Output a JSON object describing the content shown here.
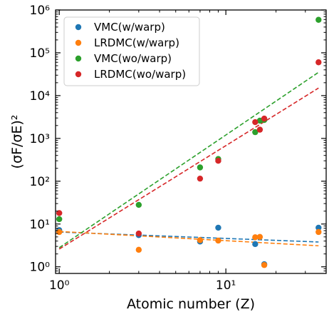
{
  "chart_data": {
    "type": "scatter",
    "xscale": "log",
    "yscale": "log",
    "xlim": [
      0.95,
      40
    ],
    "ylim": [
      0.7,
      1000000
    ],
    "xlabel": "Atomic number (Z)",
    "ylabel": "(σF/σE)²",
    "x_tick_labels": [
      "10⁰",
      "10¹"
    ],
    "y_tick_labels": [
      "10⁰",
      "10¹",
      "10²",
      "10³",
      "10⁴",
      "10⁵",
      "10⁶"
    ],
    "grid": false,
    "legend_position": "upper-left",
    "series": [
      {
        "name": "VMC(w/warp)",
        "color": "#1f77b4",
        "x": [
          1,
          3,
          7,
          9,
          15,
          17,
          36
        ],
        "y": [
          7.2,
          5.5,
          3.9,
          8.2,
          3.4,
          1.15,
          8.2
        ],
        "fit": {
          "x": [
            1,
            36
          ],
          "y": [
            6.5,
            3.8
          ]
        }
      },
      {
        "name": "LRDMC(w/warp)",
        "color": "#ff7f0e",
        "x": [
          1,
          3,
          7,
          9,
          15,
          16,
          17,
          36
        ],
        "y": [
          6.5,
          2.5,
          4.2,
          4.1,
          4.9,
          5.0,
          1.1,
          6.5
        ],
        "fit": {
          "x": [
            1,
            36
          ],
          "y": [
            6.7,
            3.1
          ]
        }
      },
      {
        "name": "VMC(wo/warp)",
        "color": "#2ca02c",
        "x": [
          1,
          3,
          7,
          9,
          15,
          16,
          17,
          36
        ],
        "y": [
          13,
          28,
          210,
          330,
          1400,
          2600,
          2700,
          590000
        ],
        "fit": {
          "x": [
            1,
            36
          ],
          "y": [
            2.8,
            35000
          ]
        }
      },
      {
        "name": "LRDMC(wo/warp)",
        "color": "#d62728",
        "x": [
          1,
          3,
          7,
          9,
          15,
          16,
          17,
          36
        ],
        "y": [
          18,
          6.0,
          115,
          300,
          2400,
          1600,
          2900,
          60000
        ],
        "fit": {
          "x": [
            1,
            36
          ],
          "y": [
            2.6,
            15000
          ]
        }
      }
    ]
  }
}
